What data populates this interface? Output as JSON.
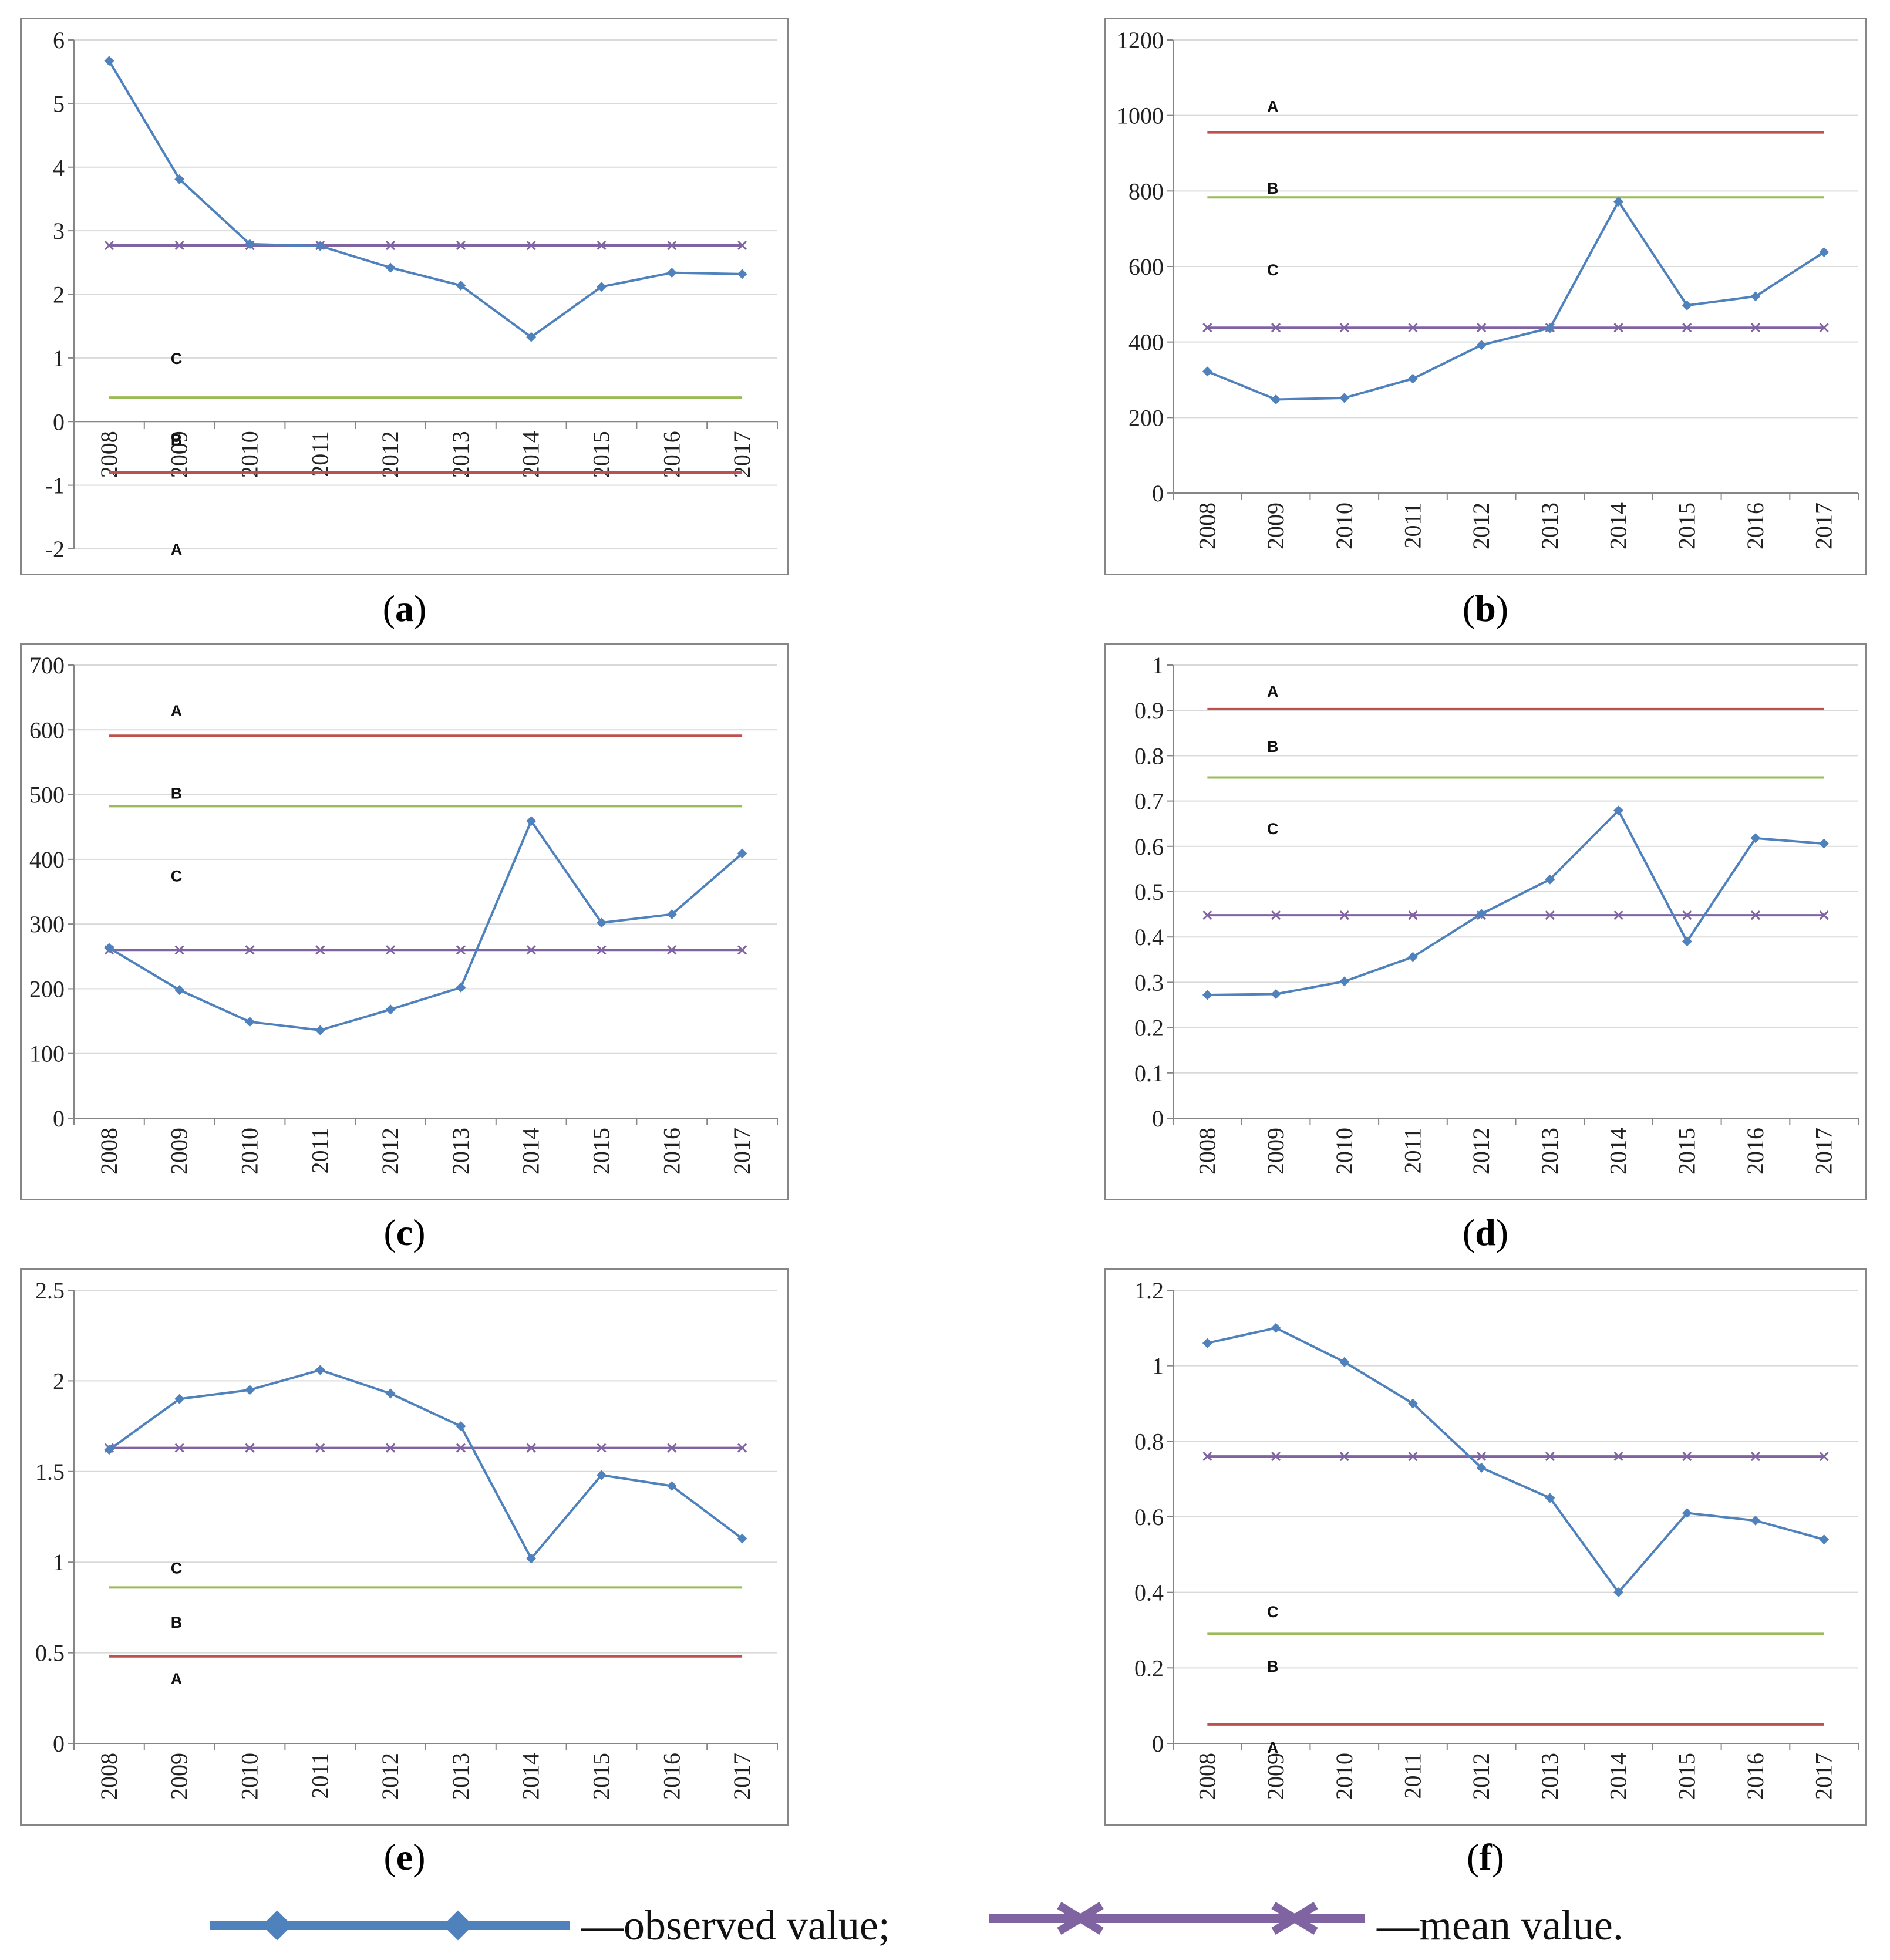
{
  "colors": {
    "observed": "#4f81bd",
    "mean": "#8064a2",
    "line_a": "#c0504d",
    "line_b": "#9bbb59",
    "grid": "#d9d9d9",
    "frame": "#868686"
  },
  "legend": {
    "observed_label": "—observed value;",
    "mean_label": "—mean value."
  },
  "chart_data": [
    {
      "id": "a",
      "type": "line",
      "panel_label": "a",
      "categories": [
        "2008",
        "2009",
        "2010",
        "2011",
        "2012",
        "2013",
        "2014",
        "2015",
        "2016",
        "2017"
      ],
      "ylim": [
        -2,
        6
      ],
      "yticks": [
        6,
        5,
        4,
        3,
        2,
        1,
        0,
        -1,
        -2
      ],
      "x_axis_at": 0,
      "series": [
        {
          "name": "observed value",
          "values": [
            5.67,
            3.81,
            2.79,
            2.76,
            2.42,
            2.14,
            1.33,
            2.12,
            2.34,
            2.32
          ]
        },
        {
          "name": "mean value",
          "values": [
            2.77,
            2.77,
            2.77,
            2.77,
            2.77,
            2.77,
            2.77,
            2.77,
            2.77,
            2.77
          ]
        }
      ],
      "reference_lines": [
        {
          "name": "A",
          "value": -0.8,
          "color": "line_a"
        },
        {
          "name": "B",
          "value": 0.38,
          "color": "line_b"
        }
      ],
      "zone_labels": [
        {
          "text": "C",
          "y": 1.0
        },
        {
          "text": "B",
          "y": -0.28
        },
        {
          "text": "A",
          "y": -2.0
        }
      ]
    },
    {
      "id": "b",
      "type": "line",
      "panel_label": "b",
      "categories": [
        "2008",
        "2009",
        "2010",
        "2011",
        "2012",
        "2013",
        "2014",
        "2015",
        "2016",
        "2017"
      ],
      "ylim": [
        0,
        1200
      ],
      "yticks": [
        1200,
        1000,
        800,
        600,
        400,
        200,
        0
      ],
      "x_axis_at": 0,
      "series": [
        {
          "name": "observed value",
          "values": [
            322,
            248,
            252,
            303,
            392,
            437,
            772,
            497,
            521,
            638
          ]
        },
        {
          "name": "mean value",
          "values": [
            438,
            438,
            438,
            438,
            438,
            438,
            438,
            438,
            438,
            438
          ]
        }
      ],
      "reference_lines": [
        {
          "name": "A",
          "value": 955,
          "color": "line_a"
        },
        {
          "name": "B",
          "value": 783,
          "color": "line_b"
        }
      ],
      "zone_labels": [
        {
          "text": "A",
          "y": 1025
        },
        {
          "text": "B",
          "y": 808
        },
        {
          "text": "C",
          "y": 592
        }
      ]
    },
    {
      "id": "c",
      "type": "line",
      "panel_label": "c",
      "categories": [
        "2008",
        "2009",
        "2010",
        "2011",
        "2012",
        "2013",
        "2014",
        "2015",
        "2016",
        "2017"
      ],
      "ylim": [
        0,
        700
      ],
      "yticks": [
        700,
        600,
        500,
        400,
        300,
        200,
        100,
        0
      ],
      "x_axis_at": 0,
      "series": [
        {
          "name": "observed value",
          "values": [
            263,
            198,
            149,
            136,
            168,
            202,
            459,
            302,
            315,
            409
          ]
        },
        {
          "name": "mean value",
          "values": [
            260,
            260,
            260,
            260,
            260,
            260,
            260,
            260,
            260,
            260
          ]
        }
      ],
      "reference_lines": [
        {
          "name": "A",
          "value": 591,
          "color": "line_a"
        },
        {
          "name": "B",
          "value": 482,
          "color": "line_b"
        }
      ],
      "zone_labels": [
        {
          "text": "A",
          "y": 630
        },
        {
          "text": "B",
          "y": 503
        },
        {
          "text": "C",
          "y": 375
        }
      ]
    },
    {
      "id": "d",
      "type": "line",
      "panel_label": "d",
      "categories": [
        "2008",
        "2009",
        "2010",
        "2011",
        "2012",
        "2013",
        "2014",
        "2015",
        "2016",
        "2017"
      ],
      "ylim": [
        0,
        1
      ],
      "yticks": [
        "1",
        "0.9",
        "0.8",
        "0.7",
        "0.6",
        "0.5",
        "0.4",
        "0.3",
        "0.2",
        "0.1",
        "0"
      ],
      "x_axis_at": 0,
      "series": [
        {
          "name": "observed value",
          "values": [
            0.272,
            0.274,
            0.302,
            0.356,
            0.451,
            0.527,
            0.679,
            0.39,
            0.618,
            0.606
          ]
        },
        {
          "name": "mean value",
          "values": [
            0.448,
            0.448,
            0.448,
            0.448,
            0.448,
            0.448,
            0.448,
            0.448,
            0.448,
            0.448
          ]
        }
      ],
      "reference_lines": [
        {
          "name": "A",
          "value": 0.903,
          "color": "line_a"
        },
        {
          "name": "B",
          "value": 0.752,
          "color": "line_b"
        }
      ],
      "zone_labels": [
        {
          "text": "A",
          "y": 0.943
        },
        {
          "text": "B",
          "y": 0.821
        },
        {
          "text": "C",
          "y": 0.64
        }
      ]
    },
    {
      "id": "e",
      "type": "line",
      "panel_label": "e",
      "categories": [
        "2008",
        "2009",
        "2010",
        "2011",
        "2012",
        "2013",
        "2014",
        "2015",
        "2016",
        "2017"
      ],
      "ylim": [
        0,
        2.5
      ],
      "yticks": [
        "2.5",
        "2",
        "1.5",
        "1",
        "0.5",
        "0"
      ],
      "x_axis_at": 0,
      "series": [
        {
          "name": "observed value",
          "values": [
            1.62,
            1.9,
            1.95,
            2.06,
            1.93,
            1.75,
            1.02,
            1.48,
            1.42,
            1.13
          ]
        },
        {
          "name": "mean value",
          "values": [
            1.63,
            1.63,
            1.63,
            1.63,
            1.63,
            1.63,
            1.63,
            1.63,
            1.63,
            1.63
          ]
        }
      ],
      "reference_lines": [
        {
          "name": "A",
          "value": 0.48,
          "color": "line_a"
        },
        {
          "name": "B",
          "value": 0.86,
          "color": "line_b"
        }
      ],
      "zone_labels": [
        {
          "text": "C",
          "y": 0.97
        },
        {
          "text": "B",
          "y": 0.67
        },
        {
          "text": "A",
          "y": 0.36
        }
      ]
    },
    {
      "id": "f",
      "type": "line",
      "panel_label": "f",
      "categories": [
        "2008",
        "2009",
        "2010",
        "2011",
        "2012",
        "2013",
        "2014",
        "2015",
        "2016",
        "2017"
      ],
      "ylim": [
        0,
        1.2
      ],
      "yticks": [
        "1.2",
        "1",
        "0.8",
        "0.6",
        "0.4",
        "0.2",
        "0"
      ],
      "x_axis_at": 0,
      "series": [
        {
          "name": "observed value",
          "values": [
            1.06,
            1.1,
            1.01,
            0.9,
            0.73,
            0.65,
            0.4,
            0.61,
            0.59,
            0.54
          ]
        },
        {
          "name": "mean value",
          "values": [
            0.76,
            0.76,
            0.76,
            0.76,
            0.76,
            0.76,
            0.76,
            0.76,
            0.76,
            0.76
          ]
        }
      ],
      "reference_lines": [
        {
          "name": "A",
          "value": 0.05,
          "color": "line_a"
        },
        {
          "name": "B",
          "value": 0.29,
          "color": "line_b"
        }
      ],
      "zone_labels": [
        {
          "text": "C",
          "y": 0.35
        },
        {
          "text": "B",
          "y": 0.205
        },
        {
          "text": "A",
          "y": -0.01
        }
      ]
    }
  ]
}
